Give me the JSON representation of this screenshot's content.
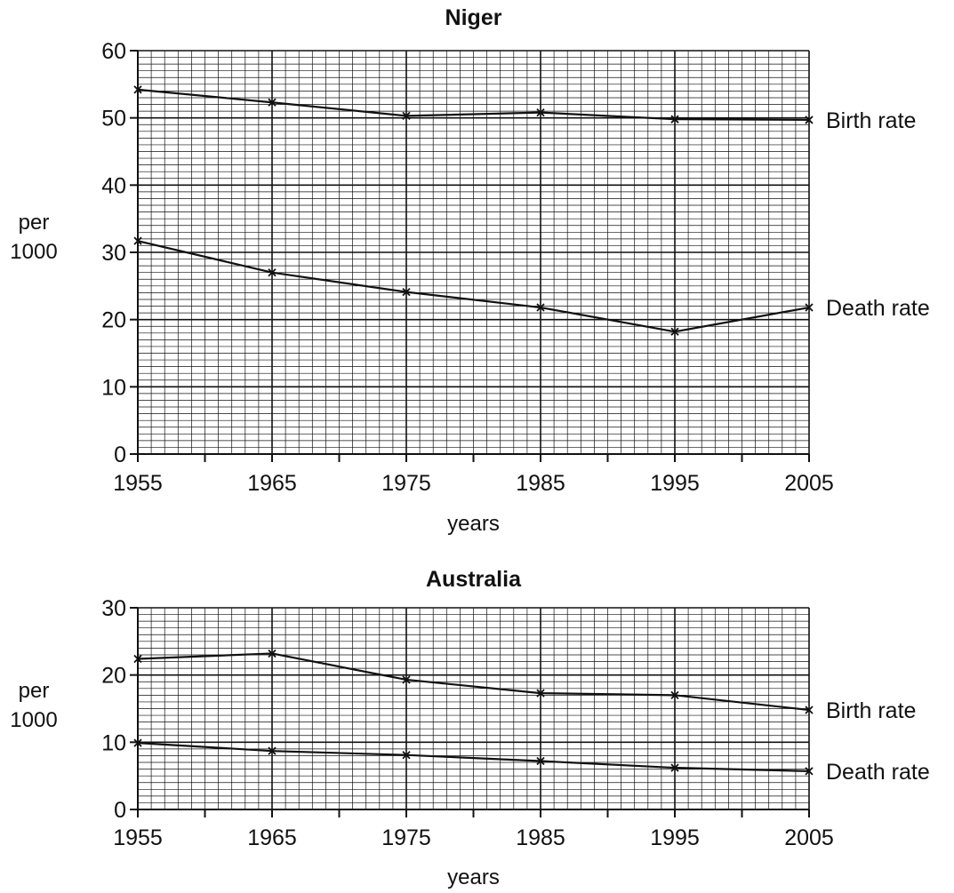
{
  "chart_data": [
    {
      "type": "line",
      "title": "Niger",
      "xlabel": "years",
      "ylabel": [
        "per",
        "1000"
      ],
      "x": [
        1955,
        1965,
        1975,
        1985,
        1995,
        2005
      ],
      "xlim": [
        1955,
        2005
      ],
      "ylim": [
        0,
        60
      ],
      "xticks": [
        1955,
        1965,
        1975,
        1985,
        1995,
        2005
      ],
      "yticks": [
        0,
        10,
        20,
        30,
        40,
        50,
        60
      ],
      "grid": true,
      "series": [
        {
          "name": "Birth rate",
          "values": [
            54.2,
            52.3,
            50.3,
            50.8,
            49.8,
            49.7
          ]
        },
        {
          "name": "Death rate",
          "values": [
            31.7,
            27.0,
            24.1,
            21.8,
            18.2,
            21.8
          ]
        }
      ]
    },
    {
      "type": "line",
      "title": "Australia",
      "xlabel": "years",
      "ylabel": [
        "per",
        "1000"
      ],
      "x": [
        1955,
        1965,
        1975,
        1985,
        1995,
        2005
      ],
      "xlim": [
        1955,
        2005
      ],
      "ylim": [
        0,
        30
      ],
      "xticks": [
        1955,
        1965,
        1975,
        1985,
        1995,
        2005
      ],
      "yticks": [
        0,
        10,
        20,
        30
      ],
      "grid": true,
      "series": [
        {
          "name": "Birth rate",
          "values": [
            22.4,
            23.2,
            19.3,
            17.3,
            17.0,
            14.8
          ]
        },
        {
          "name": "Death rate",
          "values": [
            9.9,
            8.7,
            8.1,
            7.2,
            6.2,
            5.7
          ]
        }
      ]
    }
  ]
}
